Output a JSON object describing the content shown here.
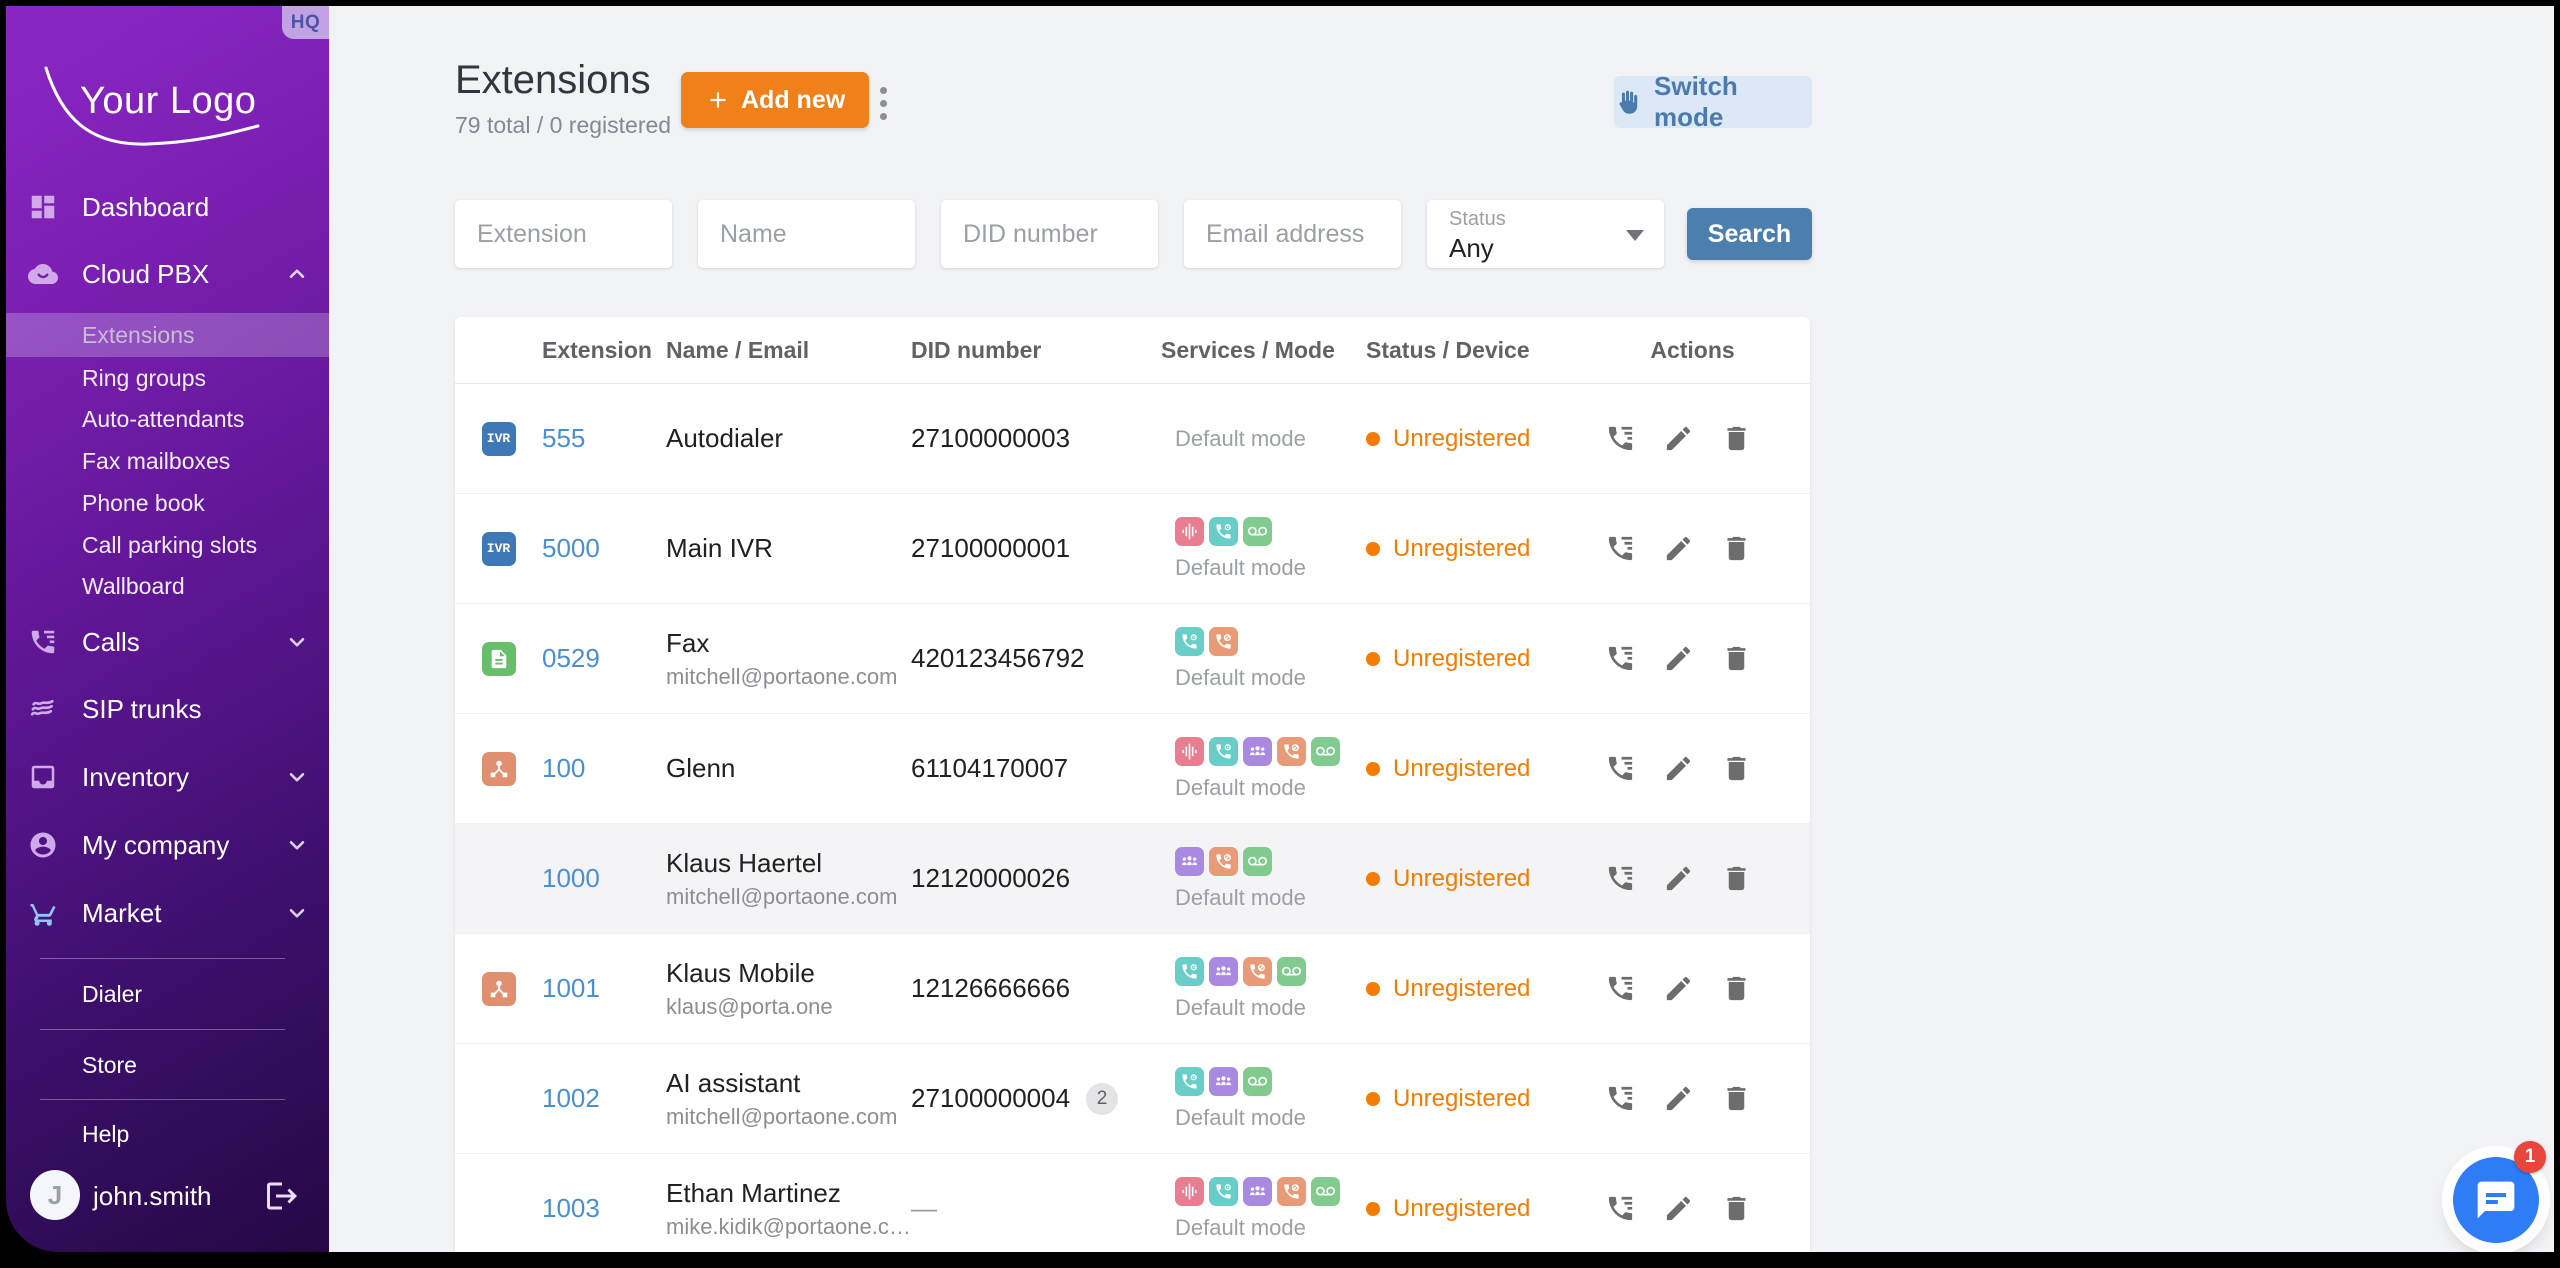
{
  "sidebar": {
    "hq_badge": "HQ",
    "logo_text": "Your Logo",
    "dashboard": "Dashboard",
    "cloud_pbx": "Cloud PBX",
    "cloud_pbx_children": [
      "Extensions",
      "Ring groups",
      "Auto-attendants",
      "Fax mailboxes",
      "Phone book",
      "Call parking slots",
      "Wallboard"
    ],
    "active_item": "Extensions",
    "calls": "Calls",
    "sip_trunks": "SIP trunks",
    "inventory": "Inventory",
    "my_company": "My company",
    "market": "Market",
    "dialer": "Dialer",
    "store": "Store",
    "help": "Help",
    "user_name": "john.smith",
    "user_initial": "J"
  },
  "header": {
    "title": "Extensions",
    "total_line": "79 total / 0 registered",
    "add_new_label": "Add new",
    "switch_mode_label": "Switch mode"
  },
  "filters": {
    "extension_placeholder": "Extension",
    "name_placeholder": "Name",
    "did_placeholder": "DID number",
    "email_placeholder": "Email address",
    "status_label": "Status",
    "status_value": "Any",
    "search_label": "Search"
  },
  "table": {
    "headers": {
      "extension": "Extension",
      "name_email": "Name / Email",
      "did": "DID number",
      "services_mode": "Services / Mode",
      "status_device": "Status / Device",
      "actions": "Actions"
    },
    "rows": [
      {
        "badge": "ivr",
        "badge_label": "IVR",
        "extension": "555",
        "name": "Autodialer",
        "email": "",
        "did": "27100000003",
        "did_count": "",
        "services": [],
        "mode": "Default mode",
        "status": "Unregistered",
        "highlighted": false
      },
      {
        "badge": "ivr",
        "badge_label": "IVR",
        "extension": "5000",
        "name": "Main IVR",
        "email": "",
        "did": "27100000001",
        "did_count": "",
        "services": [
          "waveform",
          "phone-record",
          "voicemail"
        ],
        "mode": "Default mode",
        "status": "Unregistered",
        "highlighted": false
      },
      {
        "badge": "fax",
        "badge_label": "",
        "extension": "0529",
        "name": "Fax",
        "email": "mitchell@portaone.com",
        "did": "420123456792",
        "did_count": "",
        "services": [
          "phone-record",
          "phone-barred"
        ],
        "mode": "Default mode",
        "status": "Unregistered",
        "highlighted": false
      },
      {
        "badge": "network",
        "badge_label": "",
        "extension": "100",
        "name": "Glenn",
        "email": "",
        "did": "61104170007",
        "did_count": "",
        "services": [
          "waveform",
          "phone-record",
          "group",
          "phone-barred",
          "voicemail"
        ],
        "mode": "Default mode",
        "status": "Unregistered",
        "highlighted": false
      },
      {
        "badge": "",
        "badge_label": "",
        "extension": "1000",
        "name": "Klaus Haertel",
        "email": "mitchell@portaone.com",
        "did": "12120000026",
        "did_count": "",
        "services": [
          "group",
          "phone-barred",
          "voicemail"
        ],
        "mode": "Default mode",
        "status": "Unregistered",
        "highlighted": true
      },
      {
        "badge": "network",
        "badge_label": "",
        "extension": "1001",
        "name": "Klaus Mobile",
        "email": "klaus@porta.one",
        "did": "12126666666",
        "did_count": "",
        "services": [
          "phone-record",
          "group",
          "phone-barred",
          "voicemail"
        ],
        "mode": "Default mode",
        "status": "Unregistered",
        "highlighted": false
      },
      {
        "badge": "",
        "badge_label": "",
        "extension": "1002",
        "name": "AI assistant",
        "email": "mitchell@portaone.com",
        "did": "27100000004",
        "did_count": "2",
        "services": [
          "phone-record",
          "group",
          "voicemail"
        ],
        "mode": "Default mode",
        "status": "Unregistered",
        "highlighted": false
      },
      {
        "badge": "",
        "badge_label": "",
        "extension": "1003",
        "name": "Ethan Martinez",
        "email": "mike.kidik@portaone.c…",
        "did": "—",
        "did_count": "",
        "services": [
          "waveform",
          "phone-record",
          "group",
          "phone-barred",
          "voicemail"
        ],
        "mode": "Default mode",
        "status": "Unregistered",
        "highlighted": false
      }
    ]
  },
  "chat": {
    "unread_count": "1"
  },
  "colors": {
    "accent_orange": "#f08019",
    "status_orange": "#f57c00",
    "link_blue": "#4a8fd2",
    "search_blue": "#4d7fae",
    "switch_mode_blue": "#4a7bac",
    "badge_ivr": "#3c79b6",
    "badge_fax": "#68bf6b",
    "badge_network": "#e0906f",
    "service_waveform": "#e87e8f",
    "service_phone_record": "#69cdc8",
    "service_group": "#a98ae0",
    "service_phone_barred": "#e99b77",
    "service_voicemail": "#81cb8e",
    "chat_blue": "#2e7cf6",
    "chat_badge_red": "#e8453c",
    "sidebar_purple_top": "#8a27c4",
    "sidebar_purple_bottom": "#250844"
  }
}
